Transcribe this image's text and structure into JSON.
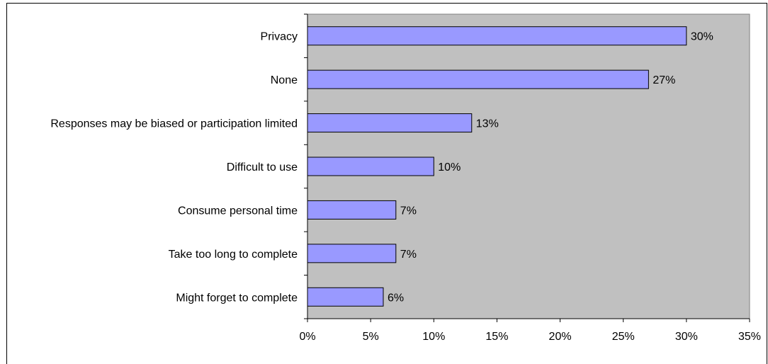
{
  "chart_data": {
    "type": "bar",
    "orientation": "horizontal",
    "categories": [
      "Privacy",
      "None",
      "Responses may be biased or participation limited",
      "Difficult to use",
      "Consume personal time",
      "Take too long to complete",
      "Might forget to complete"
    ],
    "values": [
      30,
      27,
      13,
      10,
      7,
      7,
      6
    ],
    "data_labels": [
      "30%",
      "27%",
      "13%",
      "10%",
      "7%",
      "7%",
      "6%"
    ],
    "x_ticks": [
      "0%",
      "5%",
      "10%",
      "15%",
      "20%",
      "25%",
      "30%",
      "35%"
    ],
    "xlim": [
      0,
      35
    ],
    "title": "",
    "xlabel": "",
    "ylabel": "",
    "grid": false,
    "legend": "none",
    "colors": {
      "bar_fill": "#9999ff",
      "bar_stroke": "#000000",
      "plot_background": "#c0c0c0"
    }
  }
}
